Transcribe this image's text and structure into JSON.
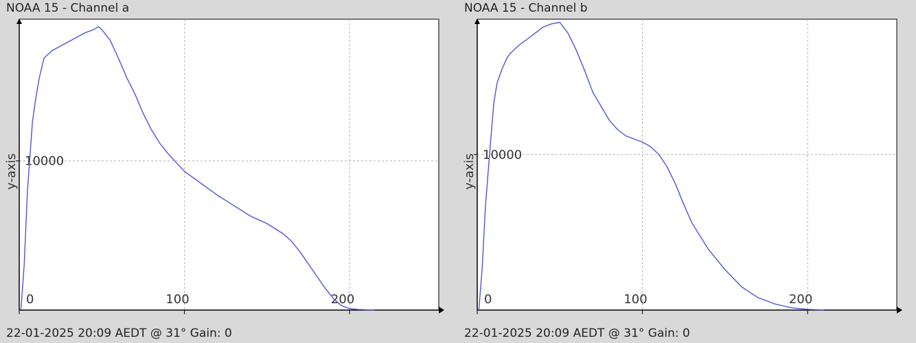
{
  "colors": {
    "line": "#4a56d6",
    "plot_bg": "#ffffff",
    "window_bg": "#d9d9d9",
    "grid": "#b0b0b0",
    "axis": "#000000"
  },
  "chart_data": [
    {
      "type": "line",
      "title": "NOAA 15 - Channel a",
      "ylabel": "y-axis",
      "xlabel": "",
      "footer": "22-01-2025 20:09 AEDT @ 31° Gain: 0",
      "x_ticks": [
        0,
        100,
        200
      ],
      "y_ticks": [
        10000
      ],
      "tick_labels": {
        "x": [
          "0",
          "100",
          "200"
        ],
        "y": [
          "10000"
        ]
      },
      "xlim": [
        0,
        254
      ],
      "ylim": [
        0,
        19500
      ],
      "grid": true,
      "series": [
        {
          "x": [
            1,
            3,
            5,
            8,
            10,
            12,
            15,
            18,
            20,
            25,
            30,
            35,
            40,
            45,
            48,
            50,
            55,
            60,
            65,
            70,
            75,
            80,
            85,
            90,
            95,
            100,
            110,
            120,
            130,
            140,
            150,
            160,
            165,
            170,
            175,
            180,
            185,
            190,
            195,
            200,
            205,
            210,
            215
          ],
          "values": [
            0,
            3000,
            8000,
            12600,
            14200,
            15500,
            16900,
            17200,
            17400,
            17700,
            18000,
            18300,
            18600,
            18800,
            19000,
            18800,
            18100,
            16900,
            15600,
            14500,
            13200,
            12100,
            11200,
            10500,
            9900,
            9300,
            8500,
            7700,
            7000,
            6300,
            5800,
            5100,
            4600,
            3900,
            3100,
            2300,
            1500,
            800,
            300,
            100,
            40,
            20,
            0
          ]
        }
      ]
    },
    {
      "type": "line",
      "title": "NOAA 15 - Channel b",
      "ylabel": "y-axis",
      "xlabel": "",
      "footer": "22-01-2025 20:09 AEDT @ 31° Gain: 0",
      "x_ticks": [
        0,
        100,
        200
      ],
      "y_ticks": [
        10000
      ],
      "tick_labels": {
        "x": [
          "0",
          "100",
          "200"
        ],
        "y": [
          "10000"
        ]
      },
      "xlim": [
        0,
        254
      ],
      "ylim": [
        0,
        18700
      ],
      "grid": true,
      "series": [
        {
          "x": [
            1,
            3,
            5,
            8,
            10,
            12,
            15,
            18,
            20,
            25,
            30,
            35,
            40,
            45,
            50,
            55,
            60,
            65,
            70,
            75,
            80,
            85,
            90,
            95,
            100,
            105,
            110,
            115,
            120,
            125,
            130,
            140,
            150,
            160,
            170,
            180,
            190,
            200,
            210
          ],
          "values": [
            0,
            2700,
            6700,
            10700,
            13300,
            14600,
            15500,
            16200,
            16500,
            17000,
            17400,
            17800,
            18200,
            18400,
            18500,
            17800,
            16700,
            15400,
            14000,
            13100,
            12200,
            11600,
            11200,
            11000,
            10800,
            10500,
            10000,
            9200,
            8100,
            6800,
            5600,
            3900,
            2600,
            1500,
            800,
            400,
            150,
            50,
            0
          ]
        }
      ]
    }
  ]
}
